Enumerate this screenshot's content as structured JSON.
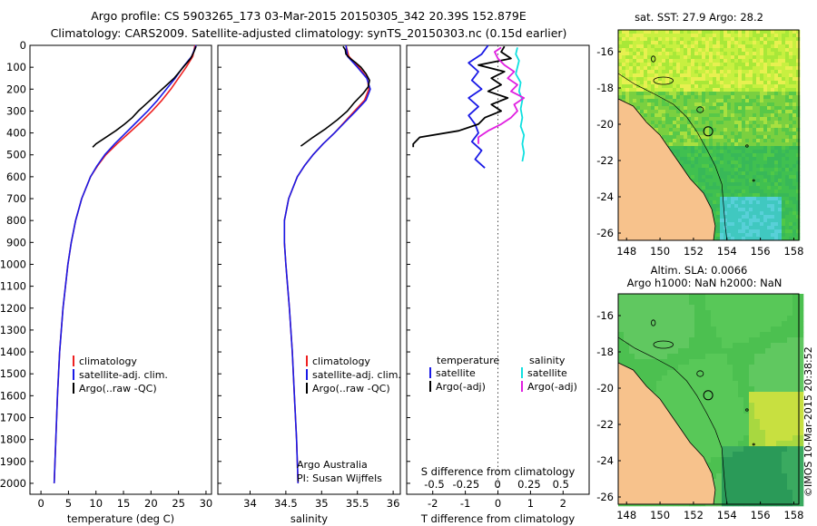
{
  "header": {
    "line1": "Argo profile: CS 5903265_173 03-Mar-2015 20150305_342 20.39S 152.879E",
    "line2": "Climatology: CARS2009. Satellite-adjusted climatology: synTS_20150303.nc (0.15d earlier)"
  },
  "credit": "©IMOS 10-Mar-2015 20:38:52",
  "footer": {
    "lab": "Argo Australia",
    "pi": "PI: Susan Wijffels"
  },
  "colors": {
    "climatology": "#ee2020",
    "satellite": "#1a1ae6",
    "argo": "#000000",
    "salinity_satellite": "#10e0e0",
    "salinity_argo": "#e020e0",
    "ocean_green": "#4fc54f",
    "land": "#f7c28c"
  },
  "chart_data": [
    {
      "type": "line",
      "name": "temperature-profile",
      "xlabel": "temperature (deg C)",
      "ylabel": "",
      "xlim": [
        -2,
        31
      ],
      "ylim": [
        2050,
        0
      ],
      "xticks": [
        0,
        5,
        10,
        15,
        20,
        25,
        30
      ],
      "yticks": [
        0,
        100,
        200,
        300,
        400,
        500,
        600,
        700,
        800,
        900,
        1000,
        1100,
        1200,
        1300,
        1400,
        1500,
        1600,
        1700,
        1800,
        1900,
        2000
      ],
      "legend": [
        "climatology",
        "satellite-adj. clim.",
        "Argo(..raw -QC)"
      ],
      "series": [
        {
          "name": "climatology",
          "depth": [
            0,
            50,
            100,
            150,
            200,
            250,
            300,
            350,
            400,
            450,
            500,
            550,
            600,
            700,
            800,
            900,
            1000,
            1200,
            1400,
            1600,
            1800,
            2000
          ],
          "values": [
            28.0,
            27.6,
            26.4,
            25.0,
            23.6,
            22.0,
            20.2,
            18.2,
            16.0,
            13.8,
            11.8,
            10.3,
            9.0,
            7.4,
            6.3,
            5.5,
            4.9,
            4.0,
            3.4,
            3.0,
            2.7,
            2.4
          ]
        },
        {
          "name": "satellite-adj. clim.",
          "depth": [
            0,
            50,
            100,
            150,
            200,
            250,
            300,
            350,
            400,
            450,
            500,
            550,
            600,
            700,
            800,
            900,
            1000,
            1200,
            1400,
            1600,
            1800,
            2000
          ],
          "values": [
            28.2,
            27.4,
            25.8,
            24.4,
            22.8,
            21.2,
            19.4,
            17.4,
            15.4,
            13.4,
            11.6,
            10.2,
            9.0,
            7.4,
            6.3,
            5.5,
            4.9,
            4.0,
            3.4,
            3.0,
            2.7,
            2.4
          ]
        },
        {
          "name": "Argo(..raw -QC)",
          "depth": [
            5,
            30,
            60,
            90,
            120,
            150,
            180,
            210,
            240,
            270,
            300,
            330,
            360,
            390,
            420,
            450,
            465
          ],
          "values": [
            28.2,
            27.8,
            27.2,
            26.2,
            25.2,
            24.2,
            22.9,
            21.6,
            20.3,
            19.0,
            17.7,
            16.6,
            15.2,
            13.6,
            11.8,
            10.0,
            9.4
          ]
        }
      ]
    },
    {
      "type": "line",
      "name": "salinity-profile",
      "xlabel": "salinity",
      "ylabel": "",
      "xlim": [
        33.55,
        36.1
      ],
      "ylim": [
        2050,
        0
      ],
      "xticks": [
        34,
        34.5,
        35,
        35.5,
        36
      ],
      "legend": [
        "climatology",
        "satellite-adj. clim.",
        "Argo(..raw -QC)"
      ],
      "series": [
        {
          "name": "climatology",
          "depth": [
            0,
            50,
            100,
            150,
            200,
            250,
            300,
            350,
            400,
            450,
            500,
            550,
            600,
            700,
            800,
            900,
            1000,
            1200,
            1400,
            1600,
            1800,
            2000
          ],
          "values": [
            35.34,
            35.38,
            35.52,
            35.64,
            35.66,
            35.6,
            35.46,
            35.32,
            35.18,
            35.02,
            34.88,
            34.76,
            34.66,
            34.54,
            34.48,
            34.48,
            34.5,
            34.55,
            34.59,
            34.62,
            34.65,
            34.67
          ]
        },
        {
          "name": "satellite-adj. clim.",
          "depth": [
            0,
            50,
            100,
            150,
            200,
            250,
            300,
            350,
            400,
            450,
            500,
            550,
            600,
            700,
            800,
            900,
            1000,
            1200,
            1400,
            1600,
            1800,
            2000
          ],
          "values": [
            35.34,
            35.36,
            35.5,
            35.63,
            35.68,
            35.62,
            35.48,
            35.33,
            35.18,
            35.02,
            34.88,
            34.76,
            34.66,
            34.54,
            34.48,
            34.48,
            34.5,
            34.55,
            34.59,
            34.62,
            34.65,
            34.67
          ]
        },
        {
          "name": "Argo(..raw -QC)",
          "depth": [
            5,
            20,
            40,
            60,
            80,
            100,
            130,
            160,
            190,
            220,
            260,
            300,
            340,
            380,
            420,
            460
          ],
          "values": [
            35.3,
            35.33,
            35.34,
            35.4,
            35.48,
            35.55,
            35.62,
            35.67,
            35.65,
            35.58,
            35.46,
            35.36,
            35.22,
            35.06,
            34.88,
            34.71
          ]
        }
      ]
    },
    {
      "type": "line",
      "name": "difference-profile",
      "xlabel": "T difference from climatology",
      "xlabel_top": "S difference from climatology",
      "xlim": [
        -2.8,
        2.8
      ],
      "ylim": [
        2050,
        0
      ],
      "xticks_T": [
        -2,
        -1,
        0,
        1,
        2
      ],
      "xticks_S": [
        "-0.5",
        "-0.25",
        "0",
        "0.25",
        "0.5"
      ],
      "legend_headers": [
        "temperature",
        "salinity"
      ],
      "legend": [
        "satellite",
        "Argo(-adj)",
        "satellite",
        "Argo(-adj)"
      ],
      "series": [
        {
          "name": "satellite",
          "group": "temperature",
          "depth": [
            0,
            40,
            80,
            120,
            160,
            200,
            240,
            280,
            320,
            360,
            400,
            440,
            480,
            520,
            560
          ],
          "values": [
            -0.3,
            -0.5,
            -0.9,
            -0.6,
            -0.8,
            -0.5,
            -0.9,
            -0.6,
            -0.9,
            -0.7,
            -0.6,
            -0.8,
            -0.5,
            -0.7,
            -0.4
          ]
        },
        {
          "name": "Argo(-adj)",
          "group": "temperature",
          "depth": [
            5,
            30,
            60,
            90,
            120,
            150,
            180,
            210,
            240,
            270,
            300,
            330,
            360,
            390,
            420,
            450,
            465
          ],
          "values": [
            0.2,
            0.1,
            0.4,
            -0.6,
            0.2,
            -0.2,
            0.1,
            -0.3,
            0.3,
            -0.2,
            0.1,
            -0.4,
            -0.6,
            -1.2,
            -2.4,
            -2.6,
            -2.6
          ]
        },
        {
          "name": "satellite",
          "group": "salinity",
          "depth": [
            10,
            40,
            70,
            100,
            130,
            170,
            210,
            250,
            290,
            330,
            370,
            410,
            450,
            490,
            530
          ],
          "values": [
            0.6,
            0.55,
            0.65,
            0.6,
            0.55,
            0.7,
            0.65,
            0.75,
            0.7,
            0.75,
            0.7,
            0.8,
            0.75,
            0.8,
            0.75
          ]
        },
        {
          "name": "Argo(-adj)",
          "group": "salinity",
          "depth": [
            10,
            30,
            60,
            90,
            120,
            150,
            180,
            210,
            240,
            270,
            300,
            330,
            360,
            390,
            420,
            450
          ],
          "values": [
            0.1,
            -0.1,
            0.0,
            0.2,
            0.5,
            0.3,
            0.6,
            0.4,
            0.8,
            0.5,
            0.6,
            0.4,
            0.1,
            -0.3,
            -0.6,
            -0.6
          ]
        }
      ]
    },
    {
      "type": "heatmap",
      "name": "sst-map",
      "title": "sat. SST: 27.9 Argo: 28.2",
      "xlim": [
        147.5,
        158.3
      ],
      "ylim": [
        -26.4,
        -14.8
      ],
      "xticks": [
        148,
        150,
        152,
        154,
        156,
        158
      ],
      "yticks": [
        -16,
        -18,
        -20,
        -22,
        -24,
        -26
      ],
      "argo_position": {
        "lat": -20.39,
        "lon": 152.879
      }
    },
    {
      "type": "heatmap",
      "name": "sla-map",
      "title": "Altim. SLA: 0.0066",
      "subtitle": "Argo h1000: NaN h2000: NaN",
      "xlim": [
        147.5,
        158.3
      ],
      "ylim": [
        -26.4,
        -14.8
      ],
      "xticks": [
        148,
        150,
        152,
        154,
        156,
        158
      ],
      "yticks": [
        -16,
        -18,
        -20,
        -22,
        -24,
        -26
      ],
      "argo_position": {
        "lat": -20.39,
        "lon": 152.879
      }
    }
  ]
}
